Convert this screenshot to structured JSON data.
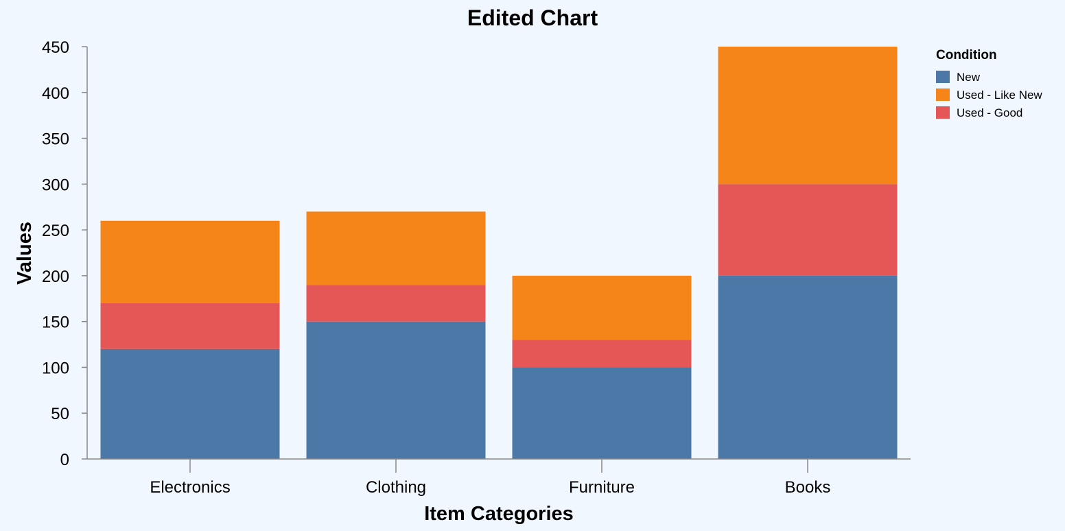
{
  "chart_data": {
    "type": "bar",
    "stacked": true,
    "title": "Edited Chart",
    "xlabel": "Item Categories",
    "ylabel": "Values",
    "ylim": [
      0,
      450
    ],
    "yticks": [
      0,
      50,
      100,
      150,
      200,
      250,
      300,
      350,
      400,
      450
    ],
    "grid": false,
    "legend_position": "right",
    "legend_title": "Condition",
    "categories": [
      "Electronics",
      "Clothing",
      "Furniture",
      "Books"
    ],
    "series": [
      {
        "name": "New",
        "color": "#4c78a8",
        "values": [
          120,
          150,
          100,
          200
        ]
      },
      {
        "name": "Used - Good",
        "color": "#e45756",
        "values": [
          50,
          40,
          30,
          100
        ]
      },
      {
        "name": "Used - Like New",
        "color": "#f58518",
        "values": [
          90,
          80,
          70,
          150
        ]
      }
    ],
    "legend_order": [
      "New",
      "Used - Like New",
      "Used - Good"
    ]
  }
}
